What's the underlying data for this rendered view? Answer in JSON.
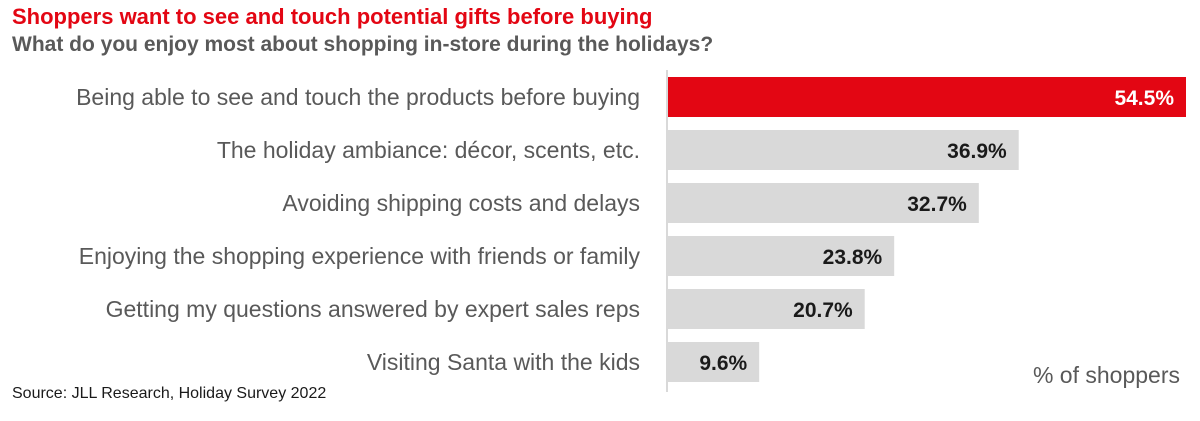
{
  "header": {
    "title": "Shoppers want to see and touch potential gifts before buying",
    "subtitle": "What do you enjoy most about shopping in-store during the holidays?"
  },
  "footer": {
    "source": "Source: JLL Research, Holiday Survey 2022",
    "unit_note": "% of shoppers"
  },
  "colors": {
    "highlight": "#e30613",
    "bar": "#d9d9d9",
    "axis": "#d9d9d9"
  },
  "chart_data": {
    "type": "bar",
    "orientation": "horizontal",
    "categories": [
      "Being able to see and touch the products before buying",
      "The holiday ambiance: décor, scents, etc.",
      "Avoiding shipping costs and delays",
      "Enjoying the shopping experience with friends or family",
      "Getting my questions answered by expert sales reps",
      "Visiting Santa with the kids"
    ],
    "values": [
      54.5,
      36.9,
      32.7,
      23.8,
      20.7,
      9.6
    ],
    "value_labels": [
      "54.5%",
      "36.9%",
      "32.7%",
      "23.8%",
      "20.7%",
      "9.6%"
    ],
    "highlight_index": 0,
    "xlim": [
      0,
      54.5
    ],
    "grid": false,
    "legend": "none"
  }
}
